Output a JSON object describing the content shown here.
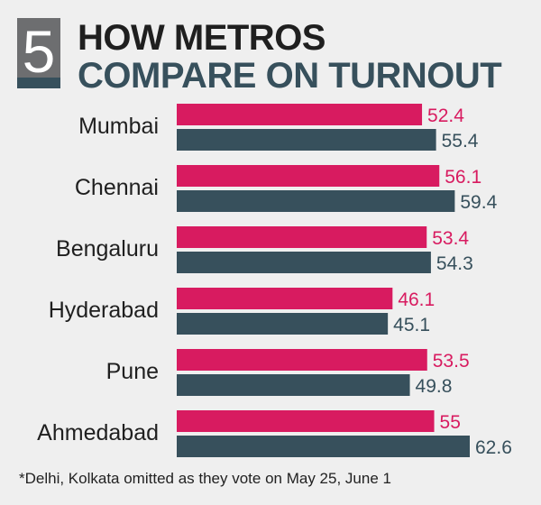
{
  "badge": "5",
  "title_line1": "HOW METROS",
  "title_line2": "COMPARE ON TURNOUT",
  "footnote": "*Delhi, Kolkata omitted as they vote on May 25, June 1",
  "colors": {
    "series_a": "#d81b60",
    "series_b": "#37505c"
  },
  "chart_data": {
    "type": "bar",
    "orientation": "horizontal",
    "categories": [
      "Mumbai",
      "Chennai",
      "Bengaluru",
      "Hyderabad",
      "Pune",
      "Ahmedabad"
    ],
    "series": [
      {
        "values": [
          52.4,
          56.1,
          53.4,
          46.1,
          53.5,
          55
        ],
        "labels": [
          "52.4",
          "56.1",
          "53.4",
          "46.1",
          "53.5",
          "55"
        ]
      },
      {
        "values": [
          55.4,
          59.4,
          54.3,
          45.1,
          49.8,
          62.6
        ],
        "labels": [
          "55.4",
          "59.4",
          "54.3",
          "45.1",
          "49.8",
          "62.6"
        ]
      }
    ],
    "xlim": [
      0,
      62.6
    ],
    "grid": false,
    "legend": false
  }
}
